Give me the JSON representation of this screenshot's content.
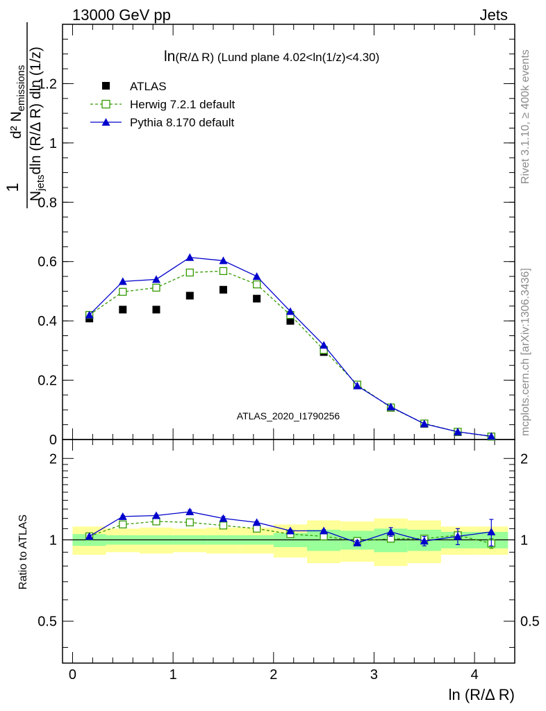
{
  "header": {
    "left": "13000 GeV pp",
    "right": "Jets"
  },
  "side_labels": {
    "rivet": "Rivet 3.1.10, ≥ 400k events",
    "mcplots": "mcplots.cern.ch [arXiv:1306.3436]"
  },
  "watermark": "ATLAS_2020_I1790256",
  "colors": {
    "atlas": "#000000",
    "herwig": "#339900",
    "pythia": "#0000cc",
    "band_inner": "#99ff99",
    "band_outer": "#ffff99"
  },
  "chart_data": [
    {
      "type": "scatter",
      "title_main": "ln",
      "title_rest": "(R/Δ R) (Lund plane 4.02<ln(1/z)<4.30)",
      "ylabel": {
        "numerator": "d² N",
        "numerator_sub": "emissions",
        "denominator": "N",
        "denominator_sub": "jets",
        "denominator_rest": "dln (R/Δ R) dln (1/z)",
        "prefix": "1"
      },
      "xlim": [
        -0.1,
        4.4
      ],
      "ylim": [
        0,
        1.4
      ],
      "yticks": [
        0,
        0.2,
        0.4,
        0.6,
        0.8,
        1,
        1.2
      ],
      "ytick_labels": [
        "0",
        "0.2",
        "0.4",
        "0.6",
        "0.8",
        "1",
        "1.2"
      ],
      "legend_position": "top-left",
      "x": [
        0.167,
        0.5,
        0.833,
        1.167,
        1.5,
        1.833,
        2.167,
        2.5,
        2.833,
        3.167,
        3.5,
        3.833,
        4.167
      ],
      "series": [
        {
          "key": "atlas",
          "name": "ATLAS",
          "marker": "square-filled",
          "values": [
            0.408,
            0.438,
            0.438,
            0.485,
            0.505,
            0.475,
            0.4,
            0.295,
            0.185,
            0.107,
            0.053,
            0.025,
            0.01
          ]
        },
        {
          "key": "herwig",
          "name": "Herwig 7.2.1 default",
          "marker": "square-open",
          "line": "dashed",
          "values": [
            0.42,
            0.498,
            0.512,
            0.563,
            0.568,
            0.523,
            0.42,
            0.302,
            0.185,
            0.108,
            0.054,
            0.026,
            0.01
          ]
        },
        {
          "key": "pythia",
          "name": "Pythia 8.170 default",
          "marker": "triangle-filled",
          "line": "solid",
          "values": [
            0.42,
            0.533,
            0.54,
            0.614,
            0.603,
            0.55,
            0.432,
            0.318,
            0.181,
            0.11,
            0.053,
            0.026,
            0.011
          ],
          "errors": [
            0.004,
            0.006,
            0.006,
            0.008,
            0.008,
            0.006,
            0.005,
            0.004,
            0.003,
            0.002,
            0.001,
            0.001,
            0.001
          ]
        }
      ]
    },
    {
      "type": "scatter",
      "ylabel": "Ratio to ATLAS",
      "xlabel": "ln (R/Δ R)",
      "xlim": [
        -0.1,
        4.4
      ],
      "ylim": [
        0.35,
        2.35
      ],
      "log_y": true,
      "yticks": [
        0.5,
        1,
        2
      ],
      "ytick_labels": [
        "0.5",
        "1",
        "2"
      ],
      "xticks": [
        0,
        1,
        2,
        3,
        4
      ],
      "xtick_labels": [
        "0",
        "1",
        "2",
        "3",
        "4"
      ],
      "x_edges": [
        0.0,
        0.333,
        0.667,
        1.0,
        1.333,
        1.667,
        2.0,
        2.333,
        2.667,
        3.0,
        3.333,
        3.667,
        4.0,
        4.333
      ],
      "band_inner": [
        [
          0.95,
          1.05
        ],
        [
          0.96,
          1.04
        ],
        [
          0.96,
          1.04
        ],
        [
          0.96,
          1.04
        ],
        [
          0.96,
          1.04
        ],
        [
          0.96,
          1.04
        ],
        [
          0.94,
          1.06
        ],
        [
          0.91,
          1.09
        ],
        [
          0.92,
          1.08
        ],
        [
          0.9,
          1.1
        ],
        [
          0.91,
          1.09
        ],
        [
          0.93,
          1.07
        ],
        [
          0.93,
          1.07
        ]
      ],
      "band_outer": [
        [
          0.88,
          1.12
        ],
        [
          0.9,
          1.1
        ],
        [
          0.89,
          1.11
        ],
        [
          0.9,
          1.1
        ],
        [
          0.89,
          1.11
        ],
        [
          0.89,
          1.11
        ],
        [
          0.86,
          1.14
        ],
        [
          0.82,
          1.18
        ],
        [
          0.83,
          1.17
        ],
        [
          0.8,
          1.2
        ],
        [
          0.82,
          1.18
        ],
        [
          0.88,
          1.12
        ],
        [
          0.88,
          1.12
        ]
      ],
      "series": [
        {
          "key": "herwig",
          "name": "Herwig 7.2.1 default",
          "values": [
            1.03,
            1.14,
            1.17,
            1.16,
            1.13,
            1.1,
            1.05,
            1.03,
            0.99,
            1.01,
            1.01,
            1.04,
            0.97
          ],
          "errors": [
            0.01,
            0.01,
            0.01,
            0.01,
            0.01,
            0.01,
            0.01,
            0.01,
            0.01,
            0.02,
            0.02,
            0.03,
            0.04
          ]
        },
        {
          "key": "pythia",
          "name": "Pythia 8.170 default",
          "values": [
            1.03,
            1.22,
            1.23,
            1.27,
            1.2,
            1.16,
            1.08,
            1.08,
            0.975,
            1.07,
            0.99,
            1.03,
            1.07
          ],
          "errors": [
            0.01,
            0.01,
            0.01,
            0.02,
            0.02,
            0.01,
            0.01,
            0.01,
            0.02,
            0.04,
            0.04,
            0.07,
            0.12
          ]
        }
      ]
    }
  ]
}
